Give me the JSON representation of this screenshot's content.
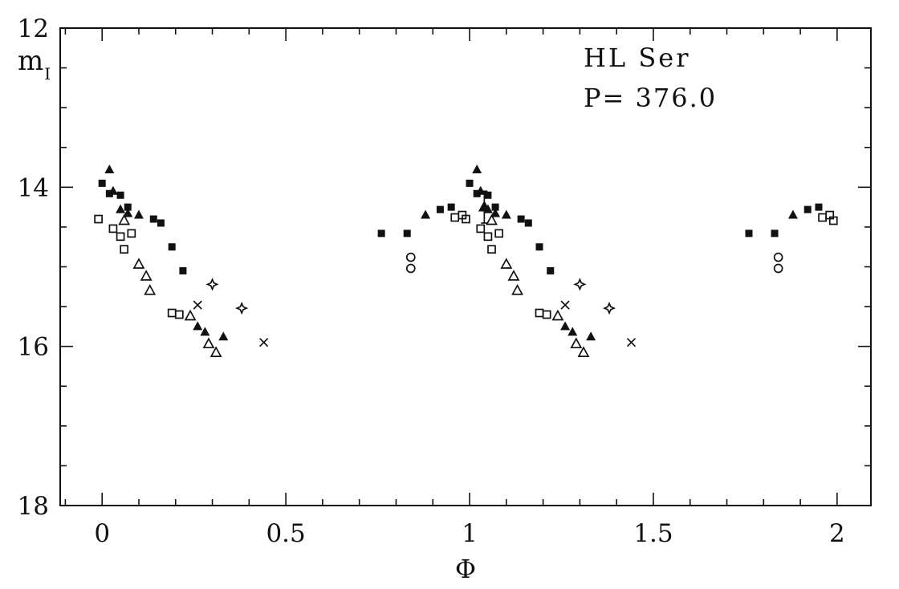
{
  "figure": {
    "star_name": "HL Ser",
    "period_text": "P= 376.0"
  },
  "chart_data": {
    "type": "scatter",
    "title": "HL Ser",
    "annotation": "P= 376.0",
    "xlabel": "Φ",
    "ylabel": "m_I",
    "ylabel_main": "m",
    "ylabel_sub": "I",
    "xlim": [
      -0.114,
      2.092
    ],
    "ylim": [
      12,
      18
    ],
    "y_inverted": true,
    "grid": false,
    "legend": false,
    "x_major_ticks": [
      0,
      0.5,
      1,
      1.5,
      2
    ],
    "x_tick_labels": [
      "0",
      "0.5",
      "1",
      "1.5",
      "2"
    ],
    "x_minor_step": 0.1,
    "y_major_ticks": [
      12,
      14,
      16,
      18
    ],
    "y_tick_labels": [
      "12",
      "14",
      "16",
      "18"
    ],
    "y_minor_step": 0.5,
    "series": [
      {
        "name": "filled-square",
        "marker": "filled-square",
        "points": [
          [
            0,
            13.95
          ],
          [
            0.02,
            14.08
          ],
          [
            0.05,
            14.1
          ],
          [
            0.07,
            14.25
          ],
          [
            0.14,
            14.4
          ],
          [
            0.16,
            14.45
          ],
          [
            0.19,
            14.75
          ],
          [
            0.22,
            15.05
          ],
          [
            0.76,
            14.58
          ],
          [
            0.83,
            14.58
          ],
          [
            0.92,
            14.28
          ],
          [
            0.95,
            14.25
          ],
          [
            1,
            13.95
          ],
          [
            1.02,
            14.08
          ],
          [
            1.05,
            14.1
          ],
          [
            1.07,
            14.25
          ],
          [
            1.14,
            14.4
          ],
          [
            1.16,
            14.45
          ],
          [
            1.19,
            14.75
          ],
          [
            1.22,
            15.05
          ],
          [
            1.76,
            14.58
          ],
          [
            1.83,
            14.58
          ],
          [
            1.92,
            14.28
          ],
          [
            1.95,
            14.25
          ]
        ]
      },
      {
        "name": "filled-triangle",
        "marker": "filled-triangle",
        "points": [
          [
            0.02,
            13.78
          ],
          [
            0.03,
            14.05
          ],
          [
            0.05,
            14.28
          ],
          [
            0.07,
            14.33
          ],
          [
            0.1,
            14.35
          ],
          [
            0.26,
            15.75
          ],
          [
            0.28,
            15.82
          ],
          [
            0.33,
            15.88
          ],
          [
            0.88,
            14.35
          ],
          [
            1.02,
            13.78
          ],
          [
            1.03,
            14.05
          ],
          [
            1.05,
            14.28
          ],
          [
            1.07,
            14.33
          ],
          [
            1.1,
            14.35
          ],
          [
            1.26,
            15.75
          ],
          [
            1.28,
            15.82
          ],
          [
            1.33,
            15.88
          ],
          [
            1.88,
            14.35
          ]
        ]
      },
      {
        "name": "open-square",
        "marker": "open-square",
        "points": [
          [
            -0.01,
            14.4
          ],
          [
            0.03,
            14.52
          ],
          [
            0.05,
            14.62
          ],
          [
            0.06,
            14.78
          ],
          [
            0.08,
            14.58
          ],
          [
            0.19,
            15.58
          ],
          [
            0.21,
            15.6
          ],
          [
            0.96,
            14.38
          ],
          [
            0.98,
            14.35
          ],
          [
            0.99,
            14.4
          ],
          [
            1.03,
            14.52
          ],
          [
            1.05,
            14.62
          ],
          [
            1.06,
            14.78
          ],
          [
            1.08,
            14.58
          ],
          [
            1.19,
            15.58
          ],
          [
            1.21,
            15.6
          ],
          [
            1.96,
            14.38
          ],
          [
            1.98,
            14.35
          ],
          [
            1.99,
            14.42
          ]
        ]
      },
      {
        "name": "open-triangle",
        "marker": "open-triangle",
        "points": [
          [
            0.06,
            14.42
          ],
          [
            0.1,
            14.97
          ],
          [
            0.12,
            15.12
          ],
          [
            0.13,
            15.3
          ],
          [
            0.24,
            15.62
          ],
          [
            0.29,
            15.97
          ],
          [
            0.31,
            16.08
          ],
          [
            1.06,
            14.42
          ],
          [
            1.1,
            14.97
          ],
          [
            1.12,
            15.12
          ],
          [
            1.13,
            15.3
          ],
          [
            1.24,
            15.62
          ],
          [
            1.29,
            15.97
          ],
          [
            1.31,
            16.08
          ]
        ]
      },
      {
        "name": "cross",
        "marker": "cross",
        "points": [
          [
            0.26,
            15.48
          ],
          [
            0.44,
            15.95
          ],
          [
            1.26,
            15.48
          ],
          [
            1.44,
            15.95
          ]
        ]
      },
      {
        "name": "four-point-star",
        "marker": "four-star",
        "points": [
          [
            0.3,
            15.22
          ],
          [
            0.38,
            15.52
          ],
          [
            1.3,
            15.22
          ],
          [
            1.38,
            15.52
          ]
        ]
      },
      {
        "name": "open-circle",
        "marker": "open-circle",
        "points": [
          [
            0.84,
            14.88
          ],
          [
            0.84,
            15.02
          ],
          [
            1.84,
            14.88
          ],
          [
            1.84,
            15.02
          ]
        ]
      }
    ],
    "error_bars": [
      {
        "x": 1.04,
        "y": 14.25,
        "err": 0.2,
        "marker": "filled-triangle"
      }
    ]
  }
}
